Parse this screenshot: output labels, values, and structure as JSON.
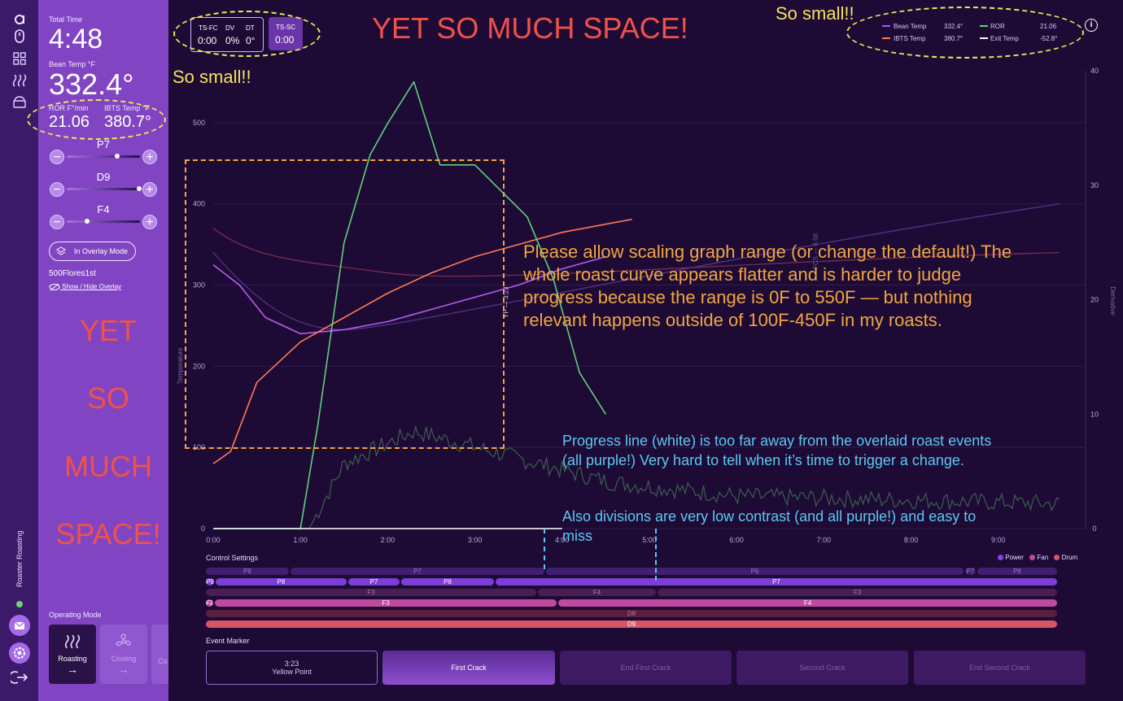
{
  "sidebar_icons": [
    "logo-icon",
    "mouse-icon",
    "grid-icon",
    "heat-waves-icon",
    "roaster-icon",
    "settings-icon",
    "logout-icon",
    "mail-icon"
  ],
  "rail": {
    "label": "Roaster Roasting",
    "status_color": "#6fd36a"
  },
  "left_panel": {
    "total_time_label": "Total Time",
    "total_time": "4:48",
    "bean_temp_label": "Bean Temp °F",
    "bean_temp": "332.4°",
    "ror_label": "ROR F°/min",
    "ror": "21.06",
    "ibts_label": "IBTS Temp °F",
    "ibts": "380.7°",
    "sliders": [
      {
        "label": "P7",
        "level": 0.9
      },
      {
        "label": "D9",
        "level": 0.98
      },
      {
        "label": "F4",
        "level": 0.35
      }
    ],
    "overlay_button": "In Overlay Mode",
    "profile_name": "500Flores1st",
    "overlay_link": "Show / Hide Overlay",
    "operating_mode_label": "Operating Mode",
    "modes": [
      {
        "label": "Roasting"
      },
      {
        "label": "Cooling"
      },
      {
        "label": "Co"
      }
    ]
  },
  "stats_box": {
    "ts_fc_label": "TS-FC",
    "ts_fc": "0:00",
    "dv_label": "DV",
    "dv": "0%",
    "dt_label": "DT",
    "dt": "0°",
    "ts_sc_label": "TS-SC",
    "ts_sc": "0:00"
  },
  "legend": {
    "items": [
      {
        "label": "Bean Temp",
        "value": "332.4°",
        "color": "#a855f7"
      },
      {
        "label": "ROR",
        "value": "21.06",
        "color": "#5fd07d"
      },
      {
        "label": "IBTS Temp",
        "value": "380.7°",
        "color": "#ff7a55"
      },
      {
        "label": "Exit Temp",
        "value": "-52.8°",
        "color": "#ffffff"
      }
    ]
  },
  "chart": {
    "ylabel_left": "Temperature",
    "ylabel_right": "Derivative",
    "y_ticks_left": [
      "500",
      "400",
      "300",
      "200",
      "100",
      "0"
    ],
    "y_ticks_right": [
      "40",
      "30",
      "20",
      "10",
      "0"
    ],
    "x_ticks": [
      "0:00",
      "1:00",
      "2:00",
      "3:00",
      "4:00",
      "5:00",
      "6:00",
      "7:00",
      "8:00",
      "9:00"
    ],
    "marker_yp": "YP — 3:23",
    "marker_fcs": "FCS — 6:56"
  },
  "chart_data": {
    "type": "line",
    "xlabel": "",
    "ylabel": "Temperature",
    "xlim": [
      0,
      10
    ],
    "ylim": [
      0,
      550
    ],
    "y2lim": [
      0,
      40
    ],
    "series": [
      {
        "name": "Bean Temp",
        "x": [
          0,
          0.3,
          0.6,
          1,
          1.5,
          2,
          2.5,
          3,
          3.5,
          4,
          4.5
        ],
        "values": [
          325,
          300,
          260,
          240,
          245,
          255,
          270,
          285,
          300,
          320,
          335
        ]
      },
      {
        "name": "IBTS Temp",
        "x": [
          0,
          0.2,
          0.5,
          1,
          1.5,
          2,
          2.5,
          3,
          3.5,
          4,
          4.8
        ],
        "values": [
          80,
          95,
          180,
          230,
          260,
          290,
          315,
          335,
          350,
          365,
          381
        ]
      },
      {
        "name": "ROR",
        "x": [
          0,
          1,
          1.2,
          1.5,
          1.8,
          2,
          2.3,
          2.6,
          3,
          3.3,
          3.6,
          3.9,
          4.2,
          4.5
        ],
        "values": [
          0,
          0,
          20,
          55,
          72,
          78,
          86,
          70,
          70,
          65,
          60,
          48,
          30,
          22
        ]
      }
    ]
  },
  "controls": {
    "title": "Control Settings",
    "legend": [
      {
        "label": "Power",
        "color": "#8545e0"
      },
      {
        "label": "Fan",
        "color": "#c04aa0"
      },
      {
        "label": "Drum",
        "color": "#d65566"
      }
    ],
    "row1": [
      "P8",
      "P7",
      "P6",
      "P7",
      "P8"
    ],
    "row2": [
      "P9",
      "P8",
      "P7",
      "P8",
      "P7"
    ],
    "row3": [
      "F3",
      "F4",
      "F3"
    ],
    "row4": [
      "F2",
      "F3",
      "F4"
    ],
    "row5": [
      "D8"
    ],
    "row6": [
      "D9"
    ]
  },
  "events": {
    "title": "Event Marker",
    "buttons": [
      {
        "label": "Yellow Point",
        "time": "3:23"
      },
      {
        "label": "First Crack"
      },
      {
        "label": "End First Crack"
      },
      {
        "label": "Second Crack"
      },
      {
        "label": "End Second Crack"
      }
    ]
  },
  "annotations": {
    "space_top": "YET SO MUCH SPACE!",
    "small_left": "So small!!",
    "small_right": "So small!!",
    "space_left": [
      "YET",
      "SO",
      "MUCH",
      "SPACE!"
    ],
    "scaling_note": "Please allow scaling graph range (or change the default!) The whole roast curve appears flatter and is harder to judge progress because the range is 0F to 550F — but nothing relevant happens outside of 100F-450F in my roasts.",
    "progress_note": "Progress line (white) is too far away from the overlaid roast events (all purple!) Very hard to tell when it’s time to trigger a change.",
    "divisions_note": "Also divisions are very low contrast (and all purple!) and easy to miss"
  }
}
